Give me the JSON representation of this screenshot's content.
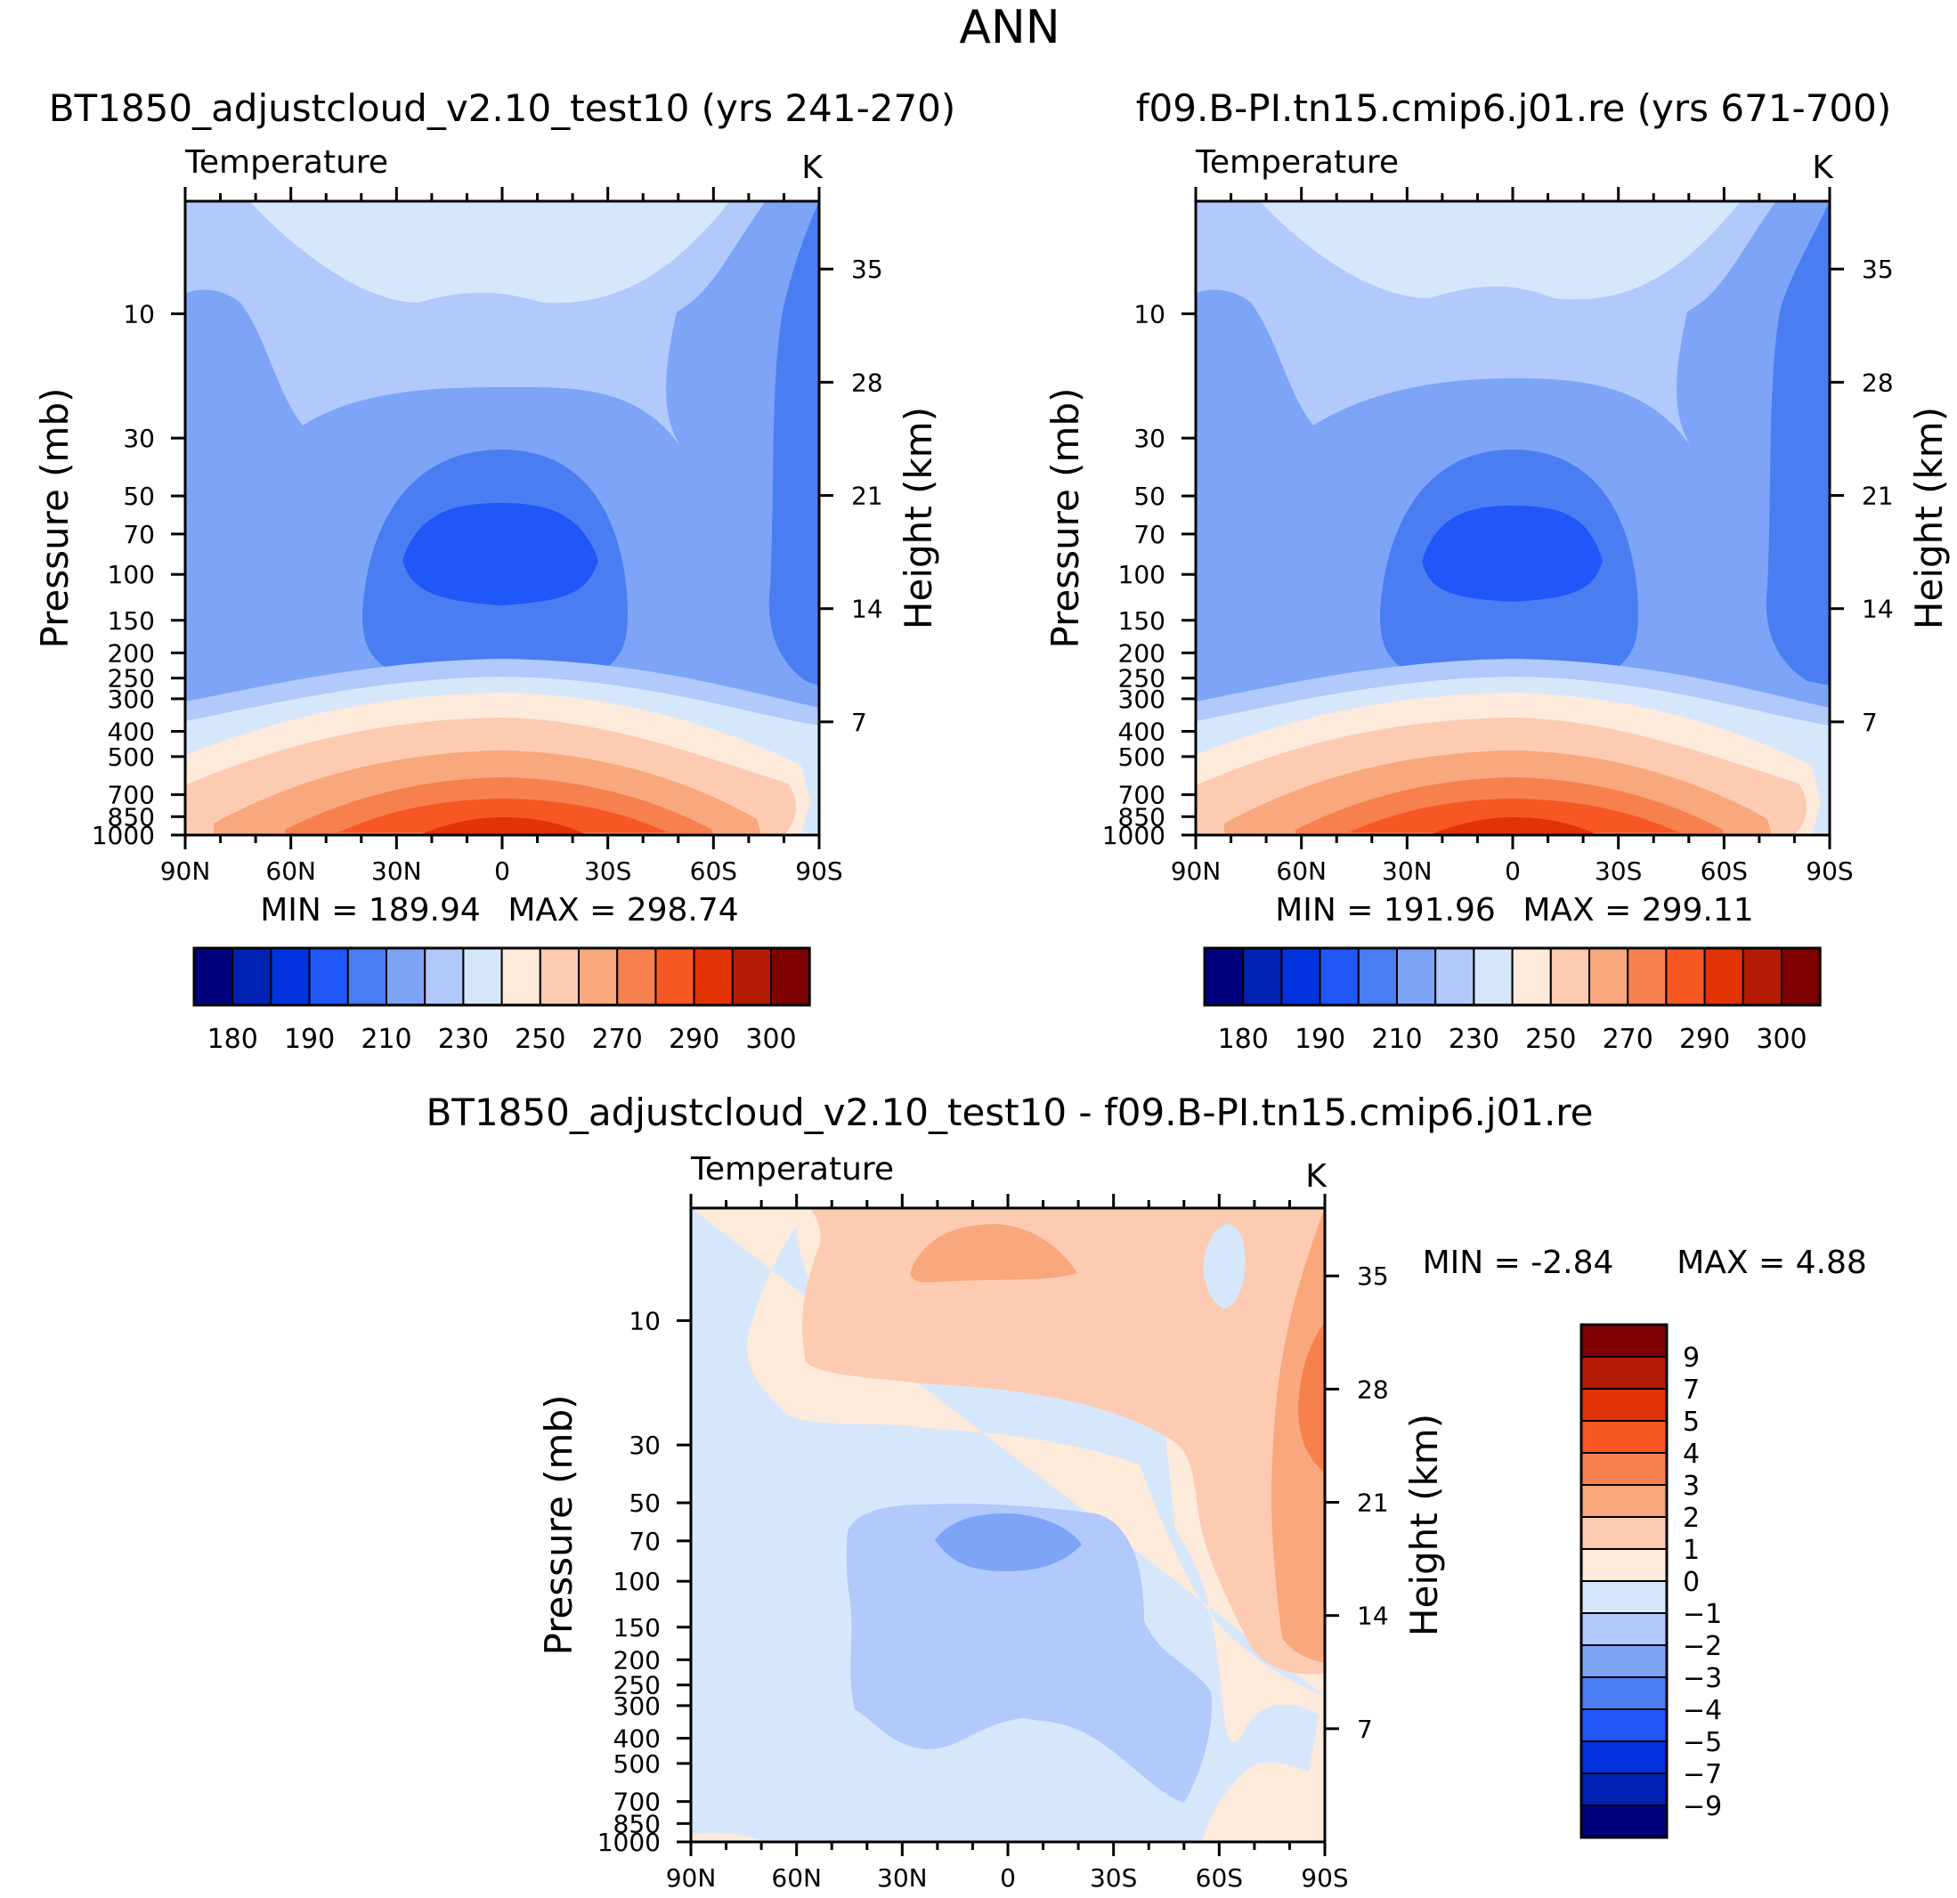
{
  "figure_title": "ANN",
  "colors": {
    "abs_levels": [
      "#00007f",
      "#0022b3",
      "#0033dd",
      "#1f57f9",
      "#4b7df2",
      "#7ea4f8",
      "#b1c9fb",
      "#d6e7fb",
      "#fdeadb",
      "#fccbb1",
      "#f9a77c",
      "#f7804f",
      "#f75823",
      "#e13306",
      "#b31b04",
      "#7f0000"
    ],
    "diff_levels": [
      "#00007f",
      "#0022b3",
      "#0033dd",
      "#1f57f9",
      "#4b7df2",
      "#7ea4f8",
      "#b1c9fb",
      "#d6e7fb",
      "#fdeadb",
      "#fccbb1",
      "#f9a77c",
      "#f7804f",
      "#f75823",
      "#e13306",
      "#b31b04",
      "#7f0000"
    ]
  },
  "chart_data": [
    {
      "type": "contour",
      "id": "left",
      "title": "BT1850_adjustcloud_v2.10_test10 (yrs 241-270)",
      "variable": "Temperature",
      "units": "K",
      "xlabel": "",
      "ylabel": "Pressure (mb)",
      "y2label": "Height (km)",
      "xticks": [
        "90N",
        "60N",
        "30N",
        "0",
        "30S",
        "60S",
        "90S"
      ],
      "yticks": [
        "10",
        "30",
        "50",
        "70",
        "100",
        "150",
        "200",
        "250",
        "300",
        "400",
        "500",
        "700",
        "850",
        "1000"
      ],
      "y2ticks": [
        "35",
        "28",
        "21",
        "14",
        "7"
      ],
      "min_label": "MIN = 189.94",
      "max_label": "MAX = 298.74",
      "min": 189.94,
      "max": 298.74,
      "colorbar_labels": [
        "180",
        "190",
        "210",
        "230",
        "250",
        "270",
        "290",
        "300"
      ],
      "colorbar_orientation": "horizontal"
    },
    {
      "type": "contour",
      "id": "right",
      "title": "f09.B-PI.tn15.cmip6.j01.re (yrs 671-700)",
      "variable": "Temperature",
      "units": "K",
      "xlabel": "",
      "ylabel": "Pressure (mb)",
      "y2label": "Height (km)",
      "xticks": [
        "90N",
        "60N",
        "30N",
        "0",
        "30S",
        "60S",
        "90S"
      ],
      "yticks": [
        "10",
        "30",
        "50",
        "70",
        "100",
        "150",
        "200",
        "250",
        "300",
        "400",
        "500",
        "700",
        "850",
        "1000"
      ],
      "y2ticks": [
        "35",
        "28",
        "21",
        "14",
        "7"
      ],
      "min_label": "MIN = 191.96",
      "max_label": "MAX = 299.11",
      "min": 191.96,
      "max": 299.11,
      "colorbar_labels": [
        "180",
        "190",
        "210",
        "230",
        "250",
        "270",
        "290",
        "300"
      ],
      "colorbar_orientation": "horizontal"
    },
    {
      "type": "contour",
      "id": "diff",
      "title": "BT1850_adjustcloud_v2.10_test10 - f09.B-PI.tn15.cmip6.j01.re",
      "variable": "Temperature",
      "units": "K",
      "xlabel": "",
      "ylabel": "Pressure (mb)",
      "y2label": "Height (km)",
      "xticks": [
        "90N",
        "60N",
        "30N",
        "0",
        "30S",
        "60S",
        "90S"
      ],
      "yticks": [
        "10",
        "30",
        "50",
        "70",
        "100",
        "150",
        "200",
        "250",
        "300",
        "400",
        "500",
        "700",
        "850",
        "1000"
      ],
      "y2ticks": [
        "35",
        "28",
        "21",
        "14",
        "7"
      ],
      "min_label": "MIN = -2.84",
      "max_label": "MAX = 4.88",
      "min": -2.84,
      "max": 4.88,
      "colorbar_labels": [
        "9",
        "7",
        "5",
        "4",
        "3",
        "2",
        "1",
        "0",
        "-1",
        "-2",
        "-3",
        "-4",
        "-5",
        "-7",
        "-9"
      ],
      "colorbar_orientation": "vertical"
    }
  ]
}
